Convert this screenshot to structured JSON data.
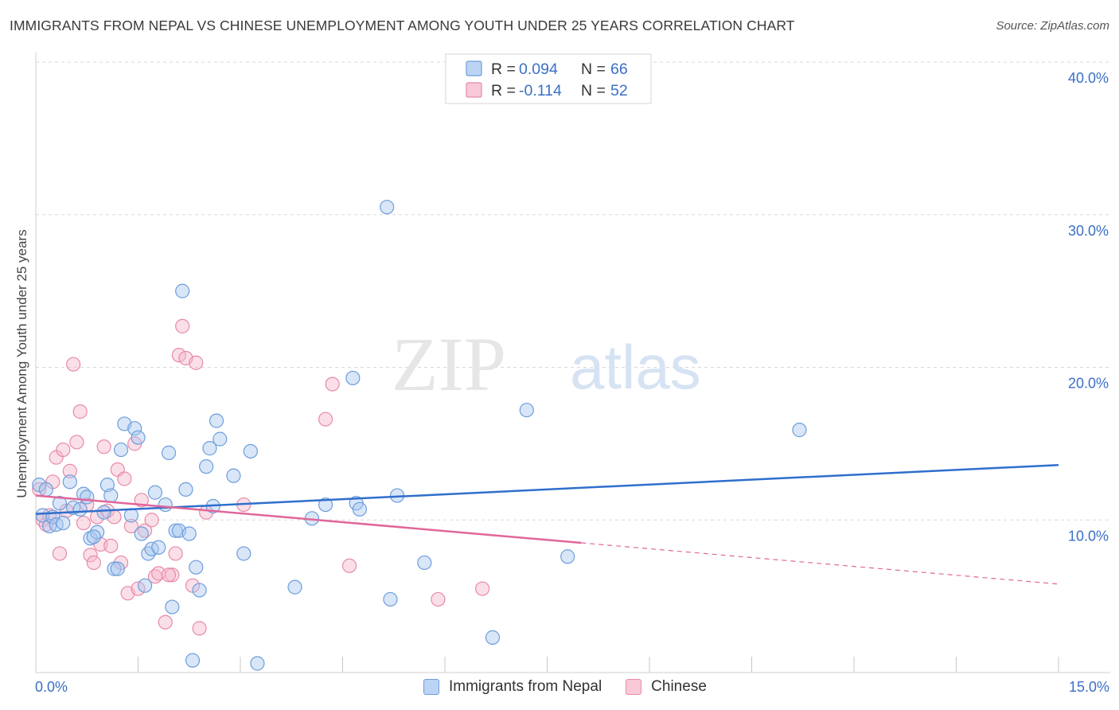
{
  "title": "IMMIGRANTS FROM NEPAL VS CHINESE UNEMPLOYMENT AMONG YOUTH UNDER 25 YEARS CORRELATION CHART",
  "source": "Source: ZipAtlas.com",
  "watermark": {
    "zip": "ZIP",
    "atlas": "atlas"
  },
  "colors": {
    "nepal_fill": "#a9c8f0",
    "nepal_stroke": "#6d9edb",
    "nepal_line": "#2f6fcc",
    "chinese_fill": "#f5b7cb",
    "chinese_stroke": "#e88aa9",
    "chinese_line": "#e0679a",
    "axis_label": "#3b6fc6",
    "grid": "#d8d8d8"
  },
  "chart_data": {
    "type": "scatter",
    "title": "IMMIGRANTS FROM NEPAL VS CHINESE UNEMPLOYMENT AMONG YOUTH UNDER 25 YEARS CORRELATION CHART",
    "xlabel": "",
    "ylabel": "Unemployment Among Youth under 25 years",
    "xlim": [
      0,
      15
    ],
    "ylim": [
      0,
      40
    ],
    "x_tick_labels": [
      {
        "x": 0,
        "label": "0.0%"
      },
      {
        "x": 15,
        "label": "15.0%"
      }
    ],
    "y_tick_labels": [
      {
        "y": 40,
        "label": "40.0%"
      },
      {
        "y": 30,
        "label": "30.0%"
      },
      {
        "y": 20,
        "label": "20.0%"
      },
      {
        "y": 10,
        "label": "10.0%"
      }
    ],
    "gridlines_y": [
      10,
      20,
      30,
      40
    ],
    "legend_stats": [
      {
        "series": "Immigrants from Nepal",
        "r_label": "R =",
        "r_value": "0.094",
        "n_label": "N =",
        "n_value": "66"
      },
      {
        "series": "Chinese",
        "r_label": "R =",
        "r_value": "-0.114",
        "n_label": "N =",
        "n_value": "52"
      }
    ],
    "series": [
      {
        "name": "Immigrants from Nepal",
        "trend": {
          "x0": 0,
          "y0": 10.4,
          "x1": 15,
          "y1": 13.6
        },
        "points": [
          [
            0.05,
            12.3
          ],
          [
            0.1,
            10.3
          ],
          [
            0.15,
            12.0
          ],
          [
            0.2,
            9.6
          ],
          [
            0.25,
            10.2
          ],
          [
            0.3,
            9.7
          ],
          [
            0.35,
            11.1
          ],
          [
            0.4,
            9.8
          ],
          [
            0.5,
            12.5
          ],
          [
            0.55,
            10.8
          ],
          [
            0.65,
            10.7
          ],
          [
            0.7,
            11.7
          ],
          [
            0.75,
            11.5
          ],
          [
            0.8,
            8.8
          ],
          [
            0.9,
            9.2
          ],
          [
            1.05,
            12.3
          ],
          [
            1.1,
            11.6
          ],
          [
            1.15,
            6.8
          ],
          [
            1.2,
            6.8
          ],
          [
            1.25,
            14.6
          ],
          [
            1.3,
            16.3
          ],
          [
            1.4,
            10.3
          ],
          [
            1.45,
            16.0
          ],
          [
            1.5,
            15.4
          ],
          [
            1.55,
            9.1
          ],
          [
            1.6,
            5.7
          ],
          [
            1.65,
            7.8
          ],
          [
            1.7,
            8.1
          ],
          [
            1.75,
            11.8
          ],
          [
            1.8,
            8.2
          ],
          [
            1.9,
            11.0
          ],
          [
            1.95,
            14.4
          ],
          [
            2.0,
            4.3
          ],
          [
            2.05,
            9.3
          ],
          [
            2.1,
            9.3
          ],
          [
            2.15,
            25.0
          ],
          [
            2.2,
            12.0
          ],
          [
            2.25,
            9.1
          ],
          [
            2.3,
            0.8
          ],
          [
            2.35,
            6.9
          ],
          [
            2.4,
            5.4
          ],
          [
            2.5,
            13.5
          ],
          [
            2.55,
            14.7
          ],
          [
            2.6,
            10.9
          ],
          [
            2.65,
            16.5
          ],
          [
            2.7,
            15.3
          ],
          [
            2.9,
            12.9
          ],
          [
            3.05,
            7.8
          ],
          [
            3.15,
            14.5
          ],
          [
            3.25,
            0.6
          ],
          [
            3.8,
            5.6
          ],
          [
            4.05,
            10.1
          ],
          [
            4.25,
            11.0
          ],
          [
            4.65,
            19.3
          ],
          [
            4.7,
            11.1
          ],
          [
            4.75,
            10.7
          ],
          [
            5.15,
            30.5
          ],
          [
            5.2,
            4.8
          ],
          [
            5.3,
            11.6
          ],
          [
            5.7,
            7.2
          ],
          [
            6.7,
            2.3
          ],
          [
            7.2,
            17.2
          ],
          [
            7.8,
            7.6
          ],
          [
            11.2,
            15.9
          ],
          [
            1.0,
            10.5
          ],
          [
            0.85,
            8.9
          ]
        ]
      },
      {
        "name": "Chinese",
        "trend": {
          "x0": 0,
          "y0": 11.6,
          "x1": 8.0,
          "y1": 8.5,
          "dash_x1": 15,
          "dash_y1": 5.8
        },
        "points": [
          [
            0.05,
            12.0
          ],
          [
            0.1,
            10.0
          ],
          [
            0.15,
            9.7
          ],
          [
            0.2,
            10.3
          ],
          [
            0.3,
            14.1
          ],
          [
            0.35,
            7.8
          ],
          [
            0.4,
            14.6
          ],
          [
            0.45,
            10.6
          ],
          [
            0.5,
            13.2
          ],
          [
            0.55,
            20.2
          ],
          [
            0.6,
            15.1
          ],
          [
            0.65,
            17.1
          ],
          [
            0.7,
            9.8
          ],
          [
            0.75,
            11.0
          ],
          [
            0.8,
            7.7
          ],
          [
            0.85,
            7.2
          ],
          [
            0.9,
            10.2
          ],
          [
            0.95,
            8.4
          ],
          [
            1.0,
            14.8
          ],
          [
            1.05,
            10.6
          ],
          [
            1.1,
            8.3
          ],
          [
            1.15,
            10.2
          ],
          [
            1.2,
            13.3
          ],
          [
            1.25,
            7.2
          ],
          [
            1.3,
            12.7
          ],
          [
            1.35,
            5.2
          ],
          [
            1.4,
            9.6
          ],
          [
            1.45,
            15.0
          ],
          [
            1.5,
            5.5
          ],
          [
            1.55,
            11.3
          ],
          [
            1.6,
            9.3
          ],
          [
            1.7,
            10.0
          ],
          [
            1.75,
            6.3
          ],
          [
            1.8,
            6.5
          ],
          [
            1.9,
            3.3
          ],
          [
            2.0,
            6.4
          ],
          [
            2.05,
            7.8
          ],
          [
            2.1,
            20.8
          ],
          [
            2.15,
            22.7
          ],
          [
            2.2,
            20.6
          ],
          [
            2.3,
            5.7
          ],
          [
            2.35,
            20.3
          ],
          [
            2.4,
            2.9
          ],
          [
            2.5,
            10.5
          ],
          [
            3.05,
            11.0
          ],
          [
            4.25,
            16.6
          ],
          [
            4.35,
            18.9
          ],
          [
            4.6,
            7.0
          ],
          [
            5.9,
            4.8
          ],
          [
            6.55,
            5.5
          ],
          [
            0.25,
            12.5
          ],
          [
            1.95,
            6.4
          ]
        ]
      }
    ]
  },
  "legend_bottom": [
    {
      "label": "Immigrants from Nepal"
    },
    {
      "label": "Chinese"
    }
  ]
}
